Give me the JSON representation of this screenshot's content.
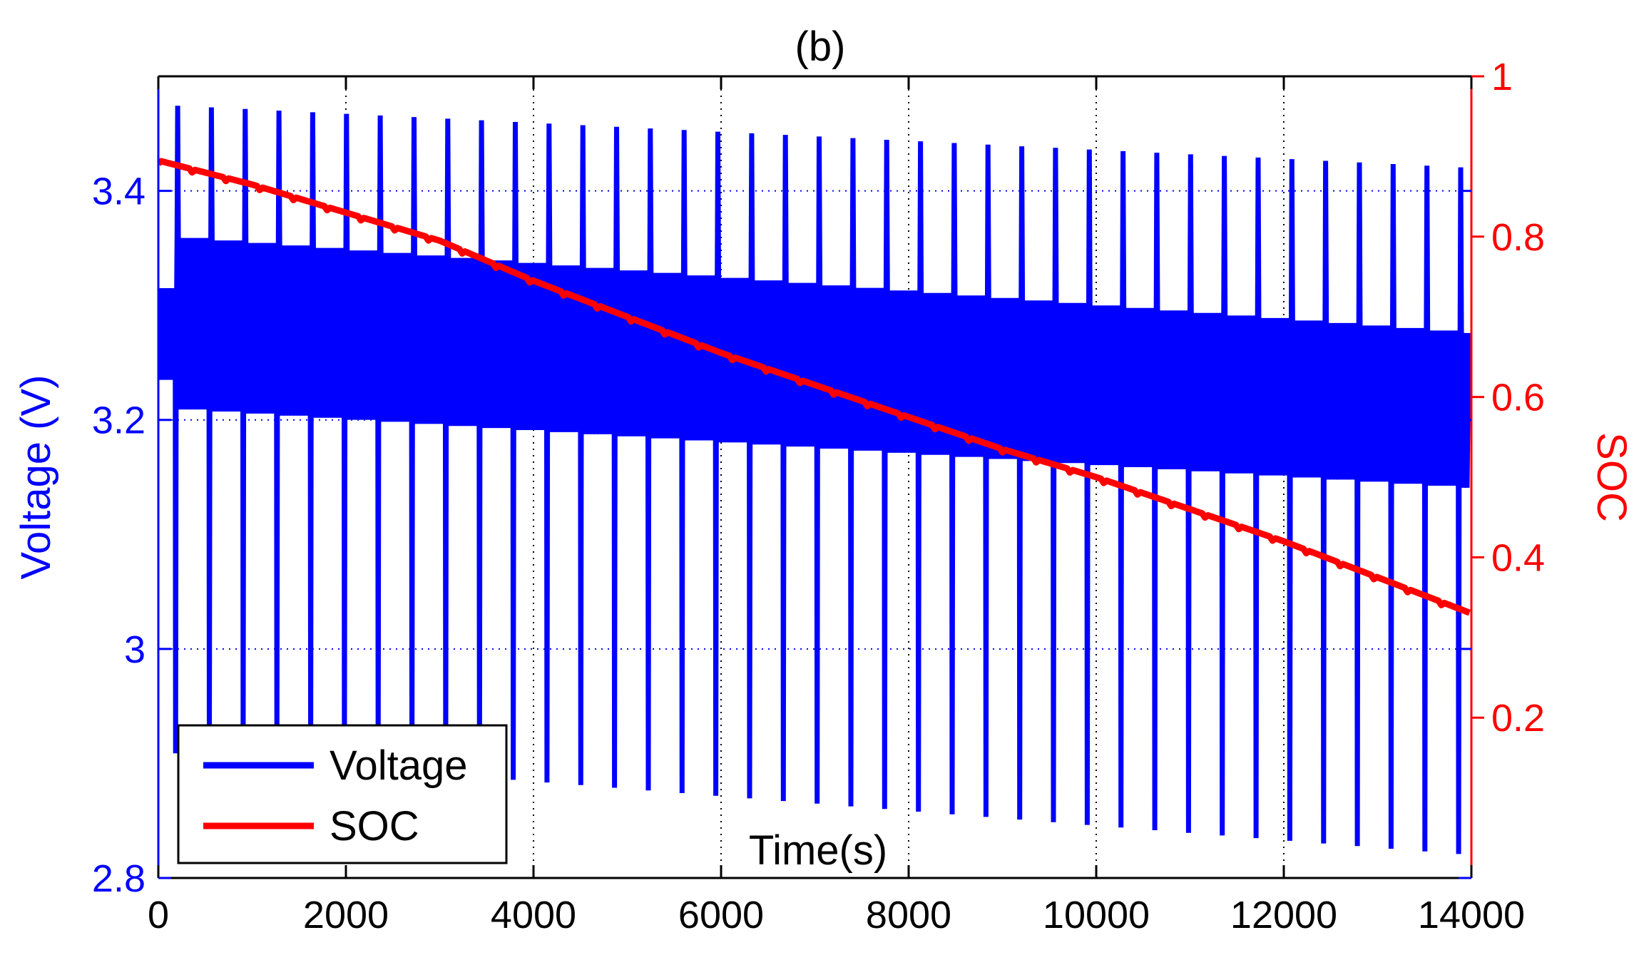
{
  "chart_data": {
    "type": "line",
    "title": "(b)",
    "xlabel": "Time(s)",
    "ylabel_left": "Voltage (V)",
    "ylabel_right": "SOC",
    "xlim": [
      0,
      14000
    ],
    "ylim_left": [
      2.8,
      3.5
    ],
    "ylim_right": [
      0,
      1
    ],
    "xticks": [
      0,
      2000,
      4000,
      6000,
      8000,
      10000,
      12000,
      14000
    ],
    "xtick_labels": [
      "0",
      "2000",
      "4000",
      "6000",
      "8000",
      "10000",
      "12000",
      "14000"
    ],
    "yticks_left": [
      2.8,
      3.0,
      3.2,
      3.4
    ],
    "ytick_labels_left": [
      "2.8",
      "3",
      "3.2",
      "3.4"
    ],
    "yticks_right": [
      0.2,
      0.4,
      0.6,
      0.8,
      1.0
    ],
    "ytick_labels_right": [
      "0.2",
      "0.4",
      "0.6",
      "0.8",
      "1"
    ],
    "grid": "dotted",
    "legend": {
      "location": "bottom-left",
      "entries": [
        "Voltage",
        "SOC"
      ]
    },
    "colors": {
      "voltage": "#0000ff",
      "soc": "#ff0000",
      "axes": "#000000"
    },
    "series": [
      {
        "name": "Voltage",
        "axis": "left",
        "description": "Repeated pulse discharge cycles, roughly every 360 s",
        "cycle_period_s": 360,
        "first_cycle_s": 180,
        "last_cycle_s": 14000,
        "baseline_start": 3.285,
        "baseline_end": 3.225,
        "upper_band_start": 3.365,
        "upper_band_end": 3.28,
        "lower_band_start": 3.205,
        "lower_band_end": 3.135,
        "spike_max_start": 3.475,
        "spike_max_end": 3.42,
        "spike_min_start": 2.91,
        "spike_min_end": 2.82
      },
      {
        "name": "SOC",
        "axis": "right",
        "x": [
          0,
          1000,
          2000,
          3000,
          4000,
          5000,
          6000,
          7000,
          8000,
          9000,
          10000,
          11000,
          12000,
          13000,
          14000
        ],
        "values": [
          0.895,
          0.865,
          0.83,
          0.795,
          0.745,
          0.7,
          0.655,
          0.615,
          0.575,
          0.535,
          0.5,
          0.46,
          0.42,
          0.375,
          0.33
        ]
      }
    ]
  }
}
